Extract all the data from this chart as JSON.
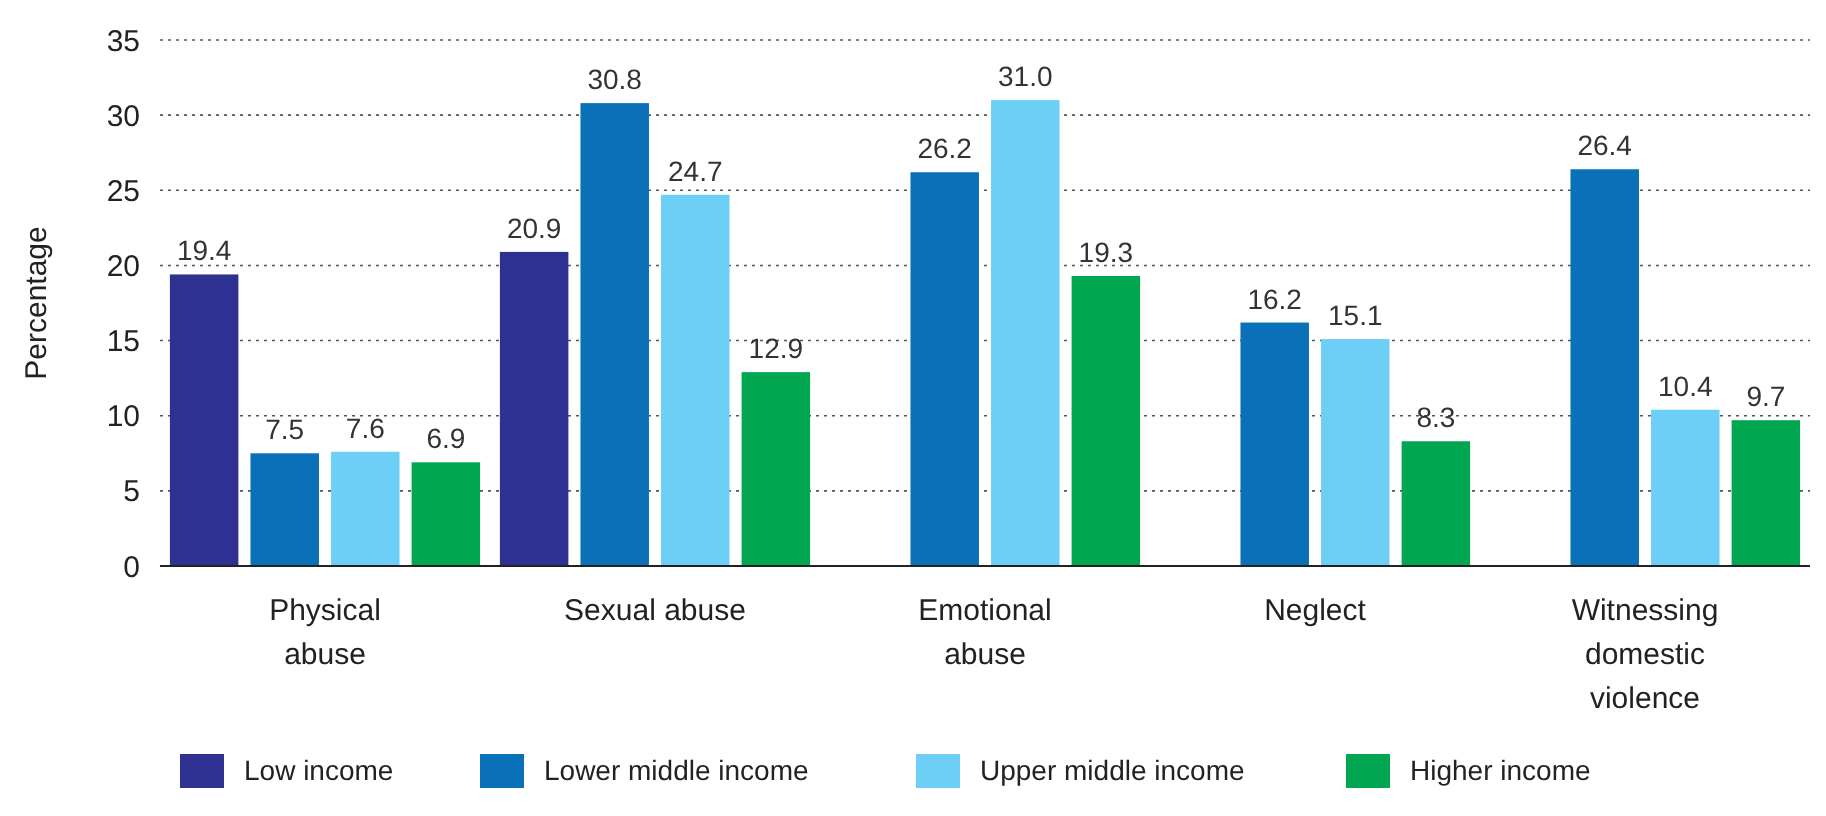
{
  "chart_data": {
    "type": "bar",
    "ylabel": "Percentage",
    "categories": [
      "Physical abuse",
      "Sexual abuse",
      "Emotional abuse",
      "Neglect",
      "Witnessing domestic violence"
    ],
    "series": [
      {
        "name": "Low income",
        "color": "#2e3191",
        "values": [
          19.4,
          20.9,
          null,
          null,
          null
        ],
        "value_labels": [
          "19.4",
          "20.9",
          null,
          null,
          null
        ]
      },
      {
        "name": "Lower middle income",
        "color": "#0a71b9",
        "values": [
          7.5,
          30.8,
          26.2,
          16.2,
          26.4
        ],
        "value_labels": [
          "7.5",
          "30.8",
          "26.2",
          "16.2",
          "26.4"
        ]
      },
      {
        "name": "Upper middle income",
        "color": "#6dcff6",
        "values": [
          7.6,
          24.7,
          31.0,
          15.1,
          10.4
        ],
        "value_labels": [
          "7.6",
          "24.7",
          "31.0",
          "15.1",
          "10.4"
        ]
      },
      {
        "name": "Higher income",
        "color": "#00a650",
        "values": [
          6.9,
          12.9,
          19.3,
          8.3,
          9.7
        ],
        "value_labels": [
          "6.9",
          "12.9",
          "19.3",
          "8.3",
          "9.7"
        ]
      }
    ],
    "ylim": [
      0,
      35
    ],
    "yticks": [
      0,
      5,
      10,
      15,
      20,
      25,
      30,
      35
    ],
    "grid": "y",
    "legend": "bottom"
  }
}
